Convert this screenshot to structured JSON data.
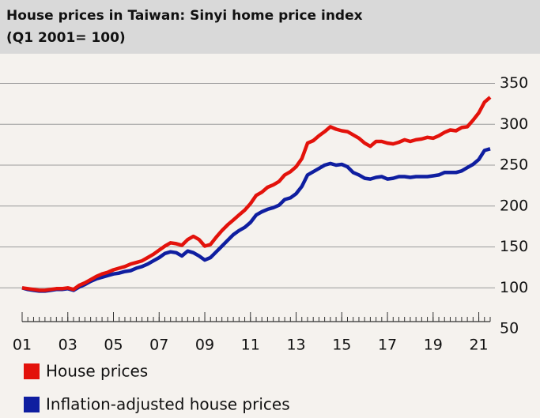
{
  "chart_data": {
    "type": "line",
    "title": "House prices in Taiwan: Sinyi home price index",
    "subtitle": "(Q1 2001= 100)",
    "x": [
      2001,
      2001.25,
      2001.5,
      2001.75,
      2002,
      2002.25,
      2002.5,
      2002.75,
      2003,
      2003.25,
      2003.5,
      2003.75,
      2004,
      2004.25,
      2004.5,
      2004.75,
      2005,
      2005.25,
      2005.5,
      2005.75,
      2006,
      2006.25,
      2006.5,
      2006.75,
      2007,
      2007.25,
      2007.5,
      2007.75,
      2008,
      2008.25,
      2008.5,
      2008.75,
      2009,
      2009.25,
      2009.5,
      2009.75,
      2010,
      2010.25,
      2010.5,
      2010.75,
      2011,
      2011.25,
      2011.5,
      2011.75,
      2012,
      2012.25,
      2012.5,
      2012.75,
      2013,
      2013.25,
      2013.5,
      2013.75,
      2014,
      2014.25,
      2014.5,
      2014.75,
      2015,
      2015.25,
      2015.5,
      2015.75,
      2016,
      2016.25,
      2016.5,
      2016.75,
      2017,
      2017.25,
      2017.5,
      2017.75,
      2018,
      2018.25,
      2018.5,
      2018.75,
      2019,
      2019.25,
      2019.5,
      2019.75,
      2020,
      2020.25,
      2020.5,
      2020.75,
      2021,
      2021.25,
      2021.5
    ],
    "series": [
      {
        "name": "House prices",
        "color": "#e3120b",
        "values": [
          100,
          99,
          98,
          97,
          97,
          98,
          99,
          99,
          100,
          98,
          103,
          106,
          110,
          114,
          117,
          119,
          122,
          124,
          126,
          129,
          131,
          133,
          137,
          141,
          146,
          151,
          155,
          154,
          152,
          159,
          163,
          159,
          151,
          153,
          162,
          170,
          177,
          183,
          189,
          195,
          203,
          213,
          217,
          223,
          226,
          230,
          238,
          242,
          248,
          258,
          277,
          280,
          286,
          291,
          297,
          294,
          292,
          291,
          287,
          283,
          277,
          273,
          279,
          279,
          277,
          276,
          278,
          281,
          279,
          281,
          282,
          284,
          283,
          286,
          290,
          293,
          292,
          296,
          297,
          305,
          314,
          327,
          333
        ]
      },
      {
        "name": "Inflation-adjusted house prices",
        "color": "#0f1ea0",
        "values": [
          100,
          98,
          97,
          96,
          96,
          97,
          98,
          98,
          99,
          97,
          101,
          104,
          108,
          111,
          113,
          115,
          117,
          118,
          120,
          121,
          124,
          126,
          129,
          133,
          137,
          142,
          144,
          143,
          139,
          145,
          143,
          139,
          134,
          137,
          144,
          151,
          158,
          165,
          170,
          174,
          180,
          189,
          193,
          196,
          198,
          201,
          208,
          210,
          215,
          224,
          238,
          242,
          246,
          250,
          252,
          250,
          251,
          248,
          241,
          238,
          234,
          233,
          235,
          236,
          233,
          234,
          236,
          236,
          235,
          236,
          236,
          236,
          237,
          238,
          241,
          241,
          241,
          243,
          247,
          251,
          257,
          268,
          270
        ]
      }
    ],
    "xlim": [
      2001,
      2021.5
    ],
    "xticks": [
      {
        "value": 2001,
        "label": "01"
      },
      {
        "value": 2003,
        "label": "03"
      },
      {
        "value": 2005,
        "label": "05"
      },
      {
        "value": 2007,
        "label": "07"
      },
      {
        "value": 2009,
        "label": "09"
      },
      {
        "value": 2011,
        "label": "11"
      },
      {
        "value": 2013,
        "label": "13"
      },
      {
        "value": 2015,
        "label": "15"
      },
      {
        "value": 2017,
        "label": "17"
      },
      {
        "value": 2019,
        "label": "19"
      },
      {
        "value": 2021,
        "label": "21"
      }
    ],
    "ylim": [
      50,
      365
    ],
    "yticks": [
      50,
      100,
      150,
      200,
      250,
      300,
      350
    ],
    "grid": true
  }
}
